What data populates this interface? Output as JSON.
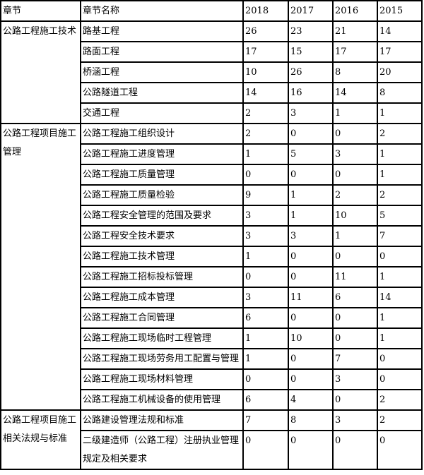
{
  "chart_data": {
    "type": "table",
    "headers": [
      "章节",
      "章节名称",
      "2018",
      "2017",
      "2016",
      "2015"
    ],
    "groups": [
      {
        "label": "公路工程施工技术",
        "rows": [
          {
            "name": "路基工程",
            "values": [
              26,
              23,
              21,
              14
            ]
          },
          {
            "name": "路面工程",
            "values": [
              17,
              15,
              17,
              17
            ]
          },
          {
            "name": "桥涵工程",
            "values": [
              10,
              26,
              8,
              20
            ]
          },
          {
            "name": "公路隧道工程",
            "values": [
              14,
              16,
              14,
              8
            ]
          },
          {
            "name": "交通工程",
            "values": [
              2,
              3,
              1,
              1
            ]
          }
        ]
      },
      {
        "label": "公路工程项目施工管理",
        "rows": [
          {
            "name": "公路工程施工组织设计",
            "values": [
              2,
              0,
              0,
              2
            ]
          },
          {
            "name": "公路工程施工进度管理",
            "values": [
              1,
              5,
              3,
              1
            ]
          },
          {
            "name": "公路工程施工质量管理",
            "values": [
              0,
              0,
              0,
              1
            ]
          },
          {
            "name": "公路工程施工质量检验",
            "values": [
              9,
              1,
              2,
              2
            ]
          },
          {
            "name": "公路工程安全管理的范围及要求",
            "values": [
              3,
              1,
              10,
              5
            ]
          },
          {
            "name": "公路工程安全技术要求",
            "values": [
              3,
              3,
              1,
              7
            ]
          },
          {
            "name": "公路工程施工技术管理",
            "values": [
              1,
              0,
              0,
              0
            ]
          },
          {
            "name": "公路工程施工招标投标管理",
            "values": [
              0,
              0,
              11,
              1
            ]
          },
          {
            "name": "公路工程施工成本管理",
            "values": [
              3,
              11,
              6,
              14
            ]
          },
          {
            "name": "公路工程施工合同管理",
            "values": [
              6,
              0,
              0,
              1
            ]
          },
          {
            "name": "公路工程施工现场临时工程管理",
            "values": [
              1,
              10,
              0,
              1
            ]
          },
          {
            "name": "公路工程施工现场劳务用工配置与管理",
            "values": [
              1,
              0,
              7,
              0
            ]
          },
          {
            "name": "公路工程施工现场材料管理",
            "values": [
              0,
              0,
              3,
              0
            ]
          },
          {
            "name": "公路工程施工机械设备的使用管理",
            "values": [
              6,
              4,
              0,
              2
            ]
          }
        ]
      },
      {
        "label": "公路工程项目施工相关法规与标准",
        "rows": [
          {
            "name": "公路建设管理法规和标准",
            "values": [
              7,
              8,
              3,
              2
            ]
          },
          {
            "name": "二级建造师（公路工程）注册执业管理规定及相关要求",
            "values": [
              0,
              0,
              0,
              0
            ]
          }
        ]
      }
    ],
    "layout": {
      "grid": "on",
      "border_color": "#000000",
      "background": "#ffffff"
    }
  }
}
